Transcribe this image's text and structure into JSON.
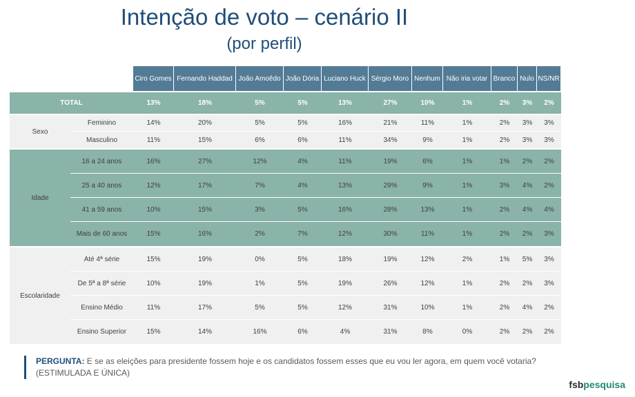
{
  "page": {
    "title": "Intenção de voto – cenário II",
    "subtitle": "(por perfil)",
    "question_label": "PERGUNTA:",
    "question_text": "E se as eleições para presidente fossem hoje e os candidatos fossem esses que eu vou ler agora, em quem você votaria? (ESTIMULADA E ÚNICA)",
    "logo_part1": "fsb",
    "logo_part2": "pesquisa"
  },
  "colors": {
    "header": "#537b96",
    "teal_rows": "#8ab3aa",
    "gray_rows": "#f0f0f0",
    "title": "#1f4e79"
  },
  "chart_data": {
    "type": "table",
    "columns": [
      "Ciro Gomes",
      "Fernando Haddad",
      "João Amoêdo",
      "João Dória",
      "Luciano Huck",
      "Sérgio Moro",
      "Nenhum",
      "Não iria votar",
      "Branco",
      "Nulo",
      "NS/NR"
    ],
    "total": {
      "label": "TOTAL",
      "values": [
        "13%",
        "18%",
        "5%",
        "5%",
        "13%",
        "27%",
        "10%",
        "1%",
        "2%",
        "3%",
        "2%"
      ]
    },
    "groups": [
      {
        "name": "Sexo",
        "style": "gray",
        "rows": [
          {
            "label": "Feminino",
            "values": [
              "14%",
              "20%",
              "5%",
              "5%",
              "16%",
              "21%",
              "11%",
              "1%",
              "2%",
              "3%",
              "3%"
            ]
          },
          {
            "label": "Masculino",
            "values": [
              "11%",
              "15%",
              "6%",
              "6%",
              "11%",
              "34%",
              "9%",
              "1%",
              "2%",
              "3%",
              "3%"
            ]
          }
        ]
      },
      {
        "name": "Idade",
        "style": "teal",
        "rows": [
          {
            "label": "16 a 24 anos",
            "values": [
              "16%",
              "27%",
              "12%",
              "4%",
              "11%",
              "19%",
              "6%",
              "1%",
              "1%",
              "2%",
              "2%"
            ]
          },
          {
            "label": "25 a 40 anos",
            "values": [
              "12%",
              "17%",
              "7%",
              "4%",
              "13%",
              "29%",
              "9%",
              "1%",
              "3%",
              "4%",
              "2%"
            ]
          },
          {
            "label": "41 a 59 anos",
            "values": [
              "10%",
              "15%",
              "3%",
              "5%",
              "16%",
              "28%",
              "13%",
              "1%",
              "2%",
              "4%",
              "4%"
            ]
          },
          {
            "label": "Mais de 60 anos",
            "values": [
              "15%",
              "16%",
              "2%",
              "7%",
              "12%",
              "30%",
              "11%",
              "1%",
              "2%",
              "2%",
              "3%"
            ]
          }
        ]
      },
      {
        "name": "Escolaridade",
        "style": "gray",
        "rows": [
          {
            "label": "Até 4ª série",
            "values": [
              "15%",
              "19%",
              "0%",
              "5%",
              "18%",
              "19%",
              "12%",
              "2%",
              "1%",
              "5%",
              "3%"
            ]
          },
          {
            "label": "De 5ª a 8ª série",
            "values": [
              "10%",
              "19%",
              "1%",
              "5%",
              "19%",
              "26%",
              "12%",
              "1%",
              "2%",
              "2%",
              "3%"
            ]
          },
          {
            "label": "Ensino Médio",
            "values": [
              "11%",
              "17%",
              "5%",
              "5%",
              "12%",
              "31%",
              "10%",
              "1%",
              "2%",
              "4%",
              "2%"
            ]
          },
          {
            "label": "Ensino Superior",
            "values": [
              "15%",
              "14%",
              "16%",
              "6%",
              "4%",
              "31%",
              "8%",
              "0%",
              "2%",
              "2%",
              "2%"
            ]
          }
        ]
      }
    ]
  }
}
